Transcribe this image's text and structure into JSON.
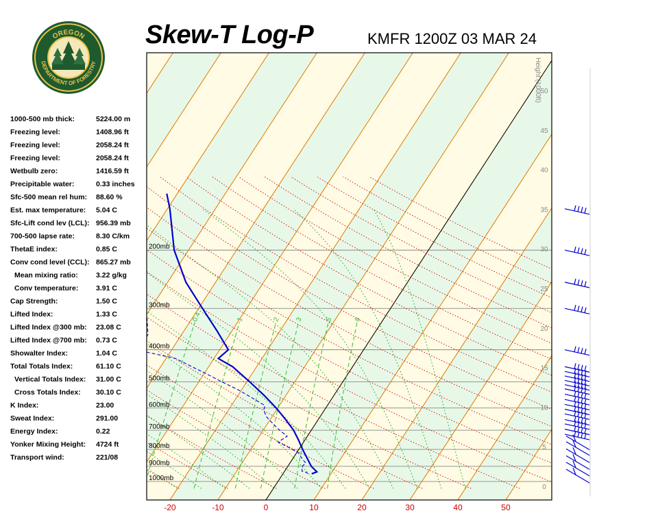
{
  "header": {
    "title": "Skew-T Log-P",
    "station_time": "KMFR 1200Z 03 MAR 24"
  },
  "logo": {
    "top_text": "OREGON",
    "bottom_text": "DEPARTMENT OF FORESTRY"
  },
  "stats": [
    {
      "label": "1000-500 mb thick:",
      "value": "5224.00 m",
      "indent": false
    },
    {
      "label": "Freezing level:",
      "value": "1408.96 ft",
      "indent": false
    },
    {
      "label": "Freezing level:",
      "value": "2058.24 ft",
      "indent": false
    },
    {
      "label": "Freezing level:",
      "value": "2058.24 ft",
      "indent": false
    },
    {
      "label": "Wetbulb zero:",
      "value": "1416.59 ft",
      "indent": false
    },
    {
      "label": "Precipitable water:",
      "value": "0.33 inches",
      "indent": false
    },
    {
      "label": "Sfc-500 mean rel hum:",
      "value": "88.60 %",
      "indent": false
    },
    {
      "label": "Est. max temperature:",
      "value": "5.04 C",
      "indent": false
    },
    {
      "label": "Sfc-Lift cond lev (LCL):",
      "value": "956.39 mb",
      "indent": false
    },
    {
      "label": "700-500 lapse rate:",
      "value": "8.30 C/km",
      "indent": false
    },
    {
      "label": "ThetaE index:",
      "value": "0.85 C",
      "indent": false
    },
    {
      "label": "Conv cond level (CCL):",
      "value": "865.27 mb",
      "indent": false
    },
    {
      "label": "Mean mixing ratio:",
      "value": "3.22 g/kg",
      "indent": true
    },
    {
      "label": "Conv temperature:",
      "value": "3.91 C",
      "indent": true
    },
    {
      "label": "Cap Strength:",
      "value": "1.50 C",
      "indent": false
    },
    {
      "label": "Lifted Index:",
      "value": "1.33 C",
      "indent": false
    },
    {
      "label": "Lifted Index @300 mb:",
      "value": "23.08 C",
      "indent": false
    },
    {
      "label": "Lifted Index @700 mb:",
      "value": "0.73 C",
      "indent": false
    },
    {
      "label": "Showalter Index:",
      "value": "1.04 C",
      "indent": false
    },
    {
      "label": "Total Totals Index:",
      "value": "61.10 C",
      "indent": false
    },
    {
      "label": "Vertical Totals Index:",
      "value": "31.00 C",
      "indent": true
    },
    {
      "label": "Cross Totals Index:",
      "value": "30.10 C",
      "indent": true
    },
    {
      "label": "K Index:",
      "value": "23.00",
      "indent": false
    },
    {
      "label": "Sweat Index:",
      "value": "291.00",
      "indent": false
    },
    {
      "label": "Energy Index:",
      "value": "0.22",
      "indent": false
    },
    {
      "label": "Yonker Mixing Height:",
      "value": "4724 ft",
      "indent": false
    },
    {
      "label": "Transport wind:",
      "value": "221/08",
      "indent": false
    }
  ],
  "chart_data": {
    "type": "line",
    "chart_kind": "skew-t log-p",
    "xlabel": "",
    "ylabel": "",
    "temperature_ticks": [
      -20,
      -10,
      0,
      10,
      20,
      30,
      40,
      50
    ],
    "temperature_tick_color": "#cc0000",
    "pressure_levels": [
      {
        "label": "200mb",
        "p": 200
      },
      {
        "label": "300mb",
        "p": 300
      },
      {
        "label": "400mb",
        "p": 400
      },
      {
        "label": "500mb",
        "p": 500
      },
      {
        "label": "600mb",
        "p": 600
      },
      {
        "label": "700mb",
        "p": 700
      },
      {
        "label": "800mb",
        "p": 800
      },
      {
        "label": "900mb",
        "p": 900
      },
      {
        "label": "1000mb",
        "p": 1000
      }
    ],
    "height_axis_label": "Height (1000ft)",
    "height_ticks": [
      0,
      5,
      10,
      15,
      20,
      25,
      30,
      35,
      40,
      45,
      50
    ],
    "mixing_ratio_labels": [
      "0.4",
      "1",
      "2",
      "3",
      "5",
      "8"
    ],
    "series": [
      {
        "role": "temperature",
        "color": "#0000cc",
        "points": [
          {
            "p": 948,
            "t": 6.0
          },
          {
            "p": 935,
            "t": 6.8
          },
          {
            "p": 900,
            "t": 4.9
          },
          {
            "p": 850,
            "t": 2.9
          },
          {
            "p": 800,
            "t": 0.8
          },
          {
            "p": 750,
            "t": -1.3
          },
          {
            "p": 700,
            "t": -3.7
          },
          {
            "p": 650,
            "t": -6.8
          },
          {
            "p": 600,
            "t": -10.3
          },
          {
            "p": 550,
            "t": -14.5
          },
          {
            "p": 500,
            "t": -19.4
          },
          {
            "p": 450,
            "t": -25.0
          },
          {
            "p": 425,
            "t": -29.1
          },
          {
            "p": 400,
            "t": -28.2
          },
          {
            "p": 350,
            "t": -33.2
          },
          {
            "p": 300,
            "t": -39.2
          },
          {
            "p": 250,
            "t": -46.2
          },
          {
            "p": 200,
            "t": -53.0
          },
          {
            "p": 150,
            "t": -59.5
          },
          {
            "p": 135,
            "t": -62.2
          }
        ]
      },
      {
        "role": "dewpoint",
        "color": "#0000cc",
        "points": [
          {
            "p": 948,
            "t": 5.2
          },
          {
            "p": 940,
            "t": 4.8
          },
          {
            "p": 930,
            "t": 3.6
          },
          {
            "p": 900,
            "t": 3.0
          },
          {
            "p": 880,
            "t": 3.3
          },
          {
            "p": 850,
            "t": 1.8
          },
          {
            "p": 820,
            "t": 0.4
          },
          {
            "p": 790,
            "t": -2.3
          },
          {
            "p": 760,
            "t": -5.3
          },
          {
            "p": 730,
            "t": -4.2
          },
          {
            "p": 700,
            "t": -6.6
          },
          {
            "p": 670,
            "t": -8.8
          },
          {
            "p": 640,
            "t": -11.0
          },
          {
            "p": 610,
            "t": -12.6
          },
          {
            "p": 590,
            "t": -13.0
          },
          {
            "p": 560,
            "t": -16.6
          },
          {
            "p": 530,
            "t": -20.5
          },
          {
            "p": 500,
            "t": -25.2
          },
          {
            "p": 470,
            "t": -30.0
          },
          {
            "p": 450,
            "t": -33.5
          },
          {
            "p": 425,
            "t": -38.0
          },
          {
            "p": 405,
            "t": -45.5
          },
          {
            "p": 400,
            "t": -47.0
          },
          {
            "p": 360,
            "t": -47.0
          },
          {
            "p": 320,
            "t": -49.5
          },
          {
            "p": 280,
            "t": -53.6
          },
          {
            "p": 250,
            "t": -58.0
          },
          {
            "p": 200,
            "t": -64.6
          },
          {
            "p": 150,
            "t": -70.6
          },
          {
            "p": 135,
            "t": -72.0
          }
        ]
      }
    ],
    "wind_barbs": [
      {
        "p": 150
      },
      {
        "p": 200
      },
      {
        "p": 250
      },
      {
        "p": 300
      },
      {
        "p": 400
      },
      {
        "p": 450
      },
      {
        "p": 465
      },
      {
        "p": 480
      },
      {
        "p": 495
      },
      {
        "p": 510
      },
      {
        "p": 525
      },
      {
        "p": 545
      },
      {
        "p": 565
      },
      {
        "p": 585
      },
      {
        "p": 605
      },
      {
        "p": 625
      },
      {
        "p": 650
      },
      {
        "p": 670
      },
      {
        "p": 695
      },
      {
        "p": 720
      },
      {
        "p": 750
      },
      {
        "p": 780
      },
      {
        "p": 820
      },
      {
        "p": 860
      },
      {
        "p": 900
      },
      {
        "p": 945
      }
    ],
    "grid": true,
    "legend": "none",
    "colors": {
      "isotherm": "#e07800",
      "dry_adiabat": "#cc0000",
      "moist_adiabat": "#009900",
      "mixing_ratio": "#33bb33",
      "band_a": "#e8f8e8",
      "band_b": "#fffbe4",
      "trace": "#0000cc"
    }
  }
}
